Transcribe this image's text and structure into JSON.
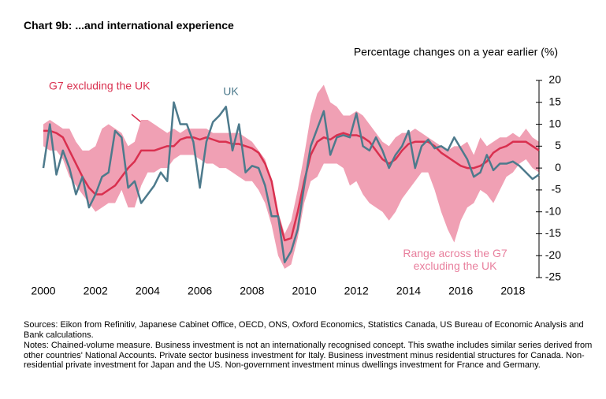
{
  "chart_data": {
    "type": "line",
    "title": "Chart 9b:  ...and international experience",
    "subtitle": "Percentage changes on a year earlier (%)",
    "x": [
      2000,
      2000.25,
      2000.5,
      2000.75,
      2001,
      2001.25,
      2001.5,
      2001.75,
      2002,
      2002.25,
      2002.5,
      2002.75,
      2003,
      2003.25,
      2003.5,
      2003.75,
      2004,
      2004.25,
      2004.5,
      2004.75,
      2005,
      2005.25,
      2005.5,
      2005.75,
      2006,
      2006.25,
      2006.5,
      2006.75,
      2007,
      2007.25,
      2007.5,
      2007.75,
      2008,
      2008.25,
      2008.5,
      2008.75,
      2009,
      2009.25,
      2009.5,
      2009.75,
      2010,
      2010.25,
      2010.5,
      2010.75,
      2011,
      2011.25,
      2011.5,
      2011.75,
      2012,
      2012.25,
      2012.5,
      2012.75,
      2013,
      2013.25,
      2013.5,
      2013.75,
      2014,
      2014.25,
      2014.5,
      2014.75,
      2015,
      2015.25,
      2015.5,
      2015.75,
      2016,
      2016.25,
      2016.5,
      2016.75,
      2017,
      2017.25,
      2017.5,
      2017.75,
      2018,
      2018.25,
      2018.5,
      2018.75,
      2019
    ],
    "series": [
      {
        "name": "G7 excluding the UK",
        "color": "#d9304f",
        "values": [
          8.5,
          8.5,
          8,
          7,
          4,
          1,
          -2,
          -4.5,
          -6,
          -6,
          -5,
          -4,
          -2,
          0,
          1.5,
          4,
          4,
          4,
          4.5,
          5,
          5,
          6.5,
          7,
          7,
          6.5,
          7,
          6.5,
          6,
          6,
          5.5,
          5.5,
          5,
          4.5,
          3.5,
          1,
          -3,
          -11,
          -16.5,
          -16,
          -10,
          -3,
          3,
          6,
          7,
          6.5,
          7.5,
          8,
          7.5,
          7.5,
          7,
          6,
          4,
          2,
          1,
          2,
          4,
          5.5,
          6,
          6,
          6,
          5,
          3.5,
          2.5,
          1.5,
          0.5,
          0,
          0,
          0.5,
          1.5,
          3.5,
          4.5,
          5,
          6,
          6,
          6,
          5,
          4
        ]
      },
      {
        "name": "UK",
        "color": "#4d7a8c",
        "values": [
          0,
          10,
          -1.5,
          4,
          0,
          -6,
          -2,
          -9,
          -6,
          -2,
          -1,
          8.5,
          7,
          -4.5,
          -3,
          -8,
          -6,
          -4,
          -1,
          -3,
          15,
          10,
          10,
          6,
          -4.5,
          6,
          10.5,
          12,
          14,
          4,
          10,
          -1,
          0.5,
          0,
          -4,
          -11,
          -11,
          -21.5,
          -19,
          -14,
          -4,
          5,
          9,
          13,
          3,
          7,
          7.5,
          7,
          12.5,
          5,
          4,
          7,
          4,
          0,
          3,
          5,
          8.5,
          0,
          5,
          6.5,
          4.5,
          5,
          4,
          7,
          4.5,
          2,
          -2,
          -1,
          3,
          -0.5,
          1,
          1,
          1.5,
          0.5,
          -1,
          -2.5,
          -1.5
        ]
      }
    ],
    "band": {
      "name": "Range across the G7 excluding the UK",
      "color": "#f0a0b4",
      "high": [
        10,
        11,
        10,
        9,
        9,
        6,
        4,
        4,
        5,
        9,
        10,
        9,
        8,
        5,
        6,
        11,
        11,
        10,
        9,
        8,
        9,
        8,
        9,
        9,
        9,
        9,
        8,
        8,
        8,
        8,
        8,
        7,
        6,
        4,
        2,
        -3,
        -10,
        -15,
        -12,
        -5,
        3,
        12,
        17,
        19,
        15,
        14,
        12,
        12,
        13,
        12,
        10,
        8,
        6,
        5,
        7,
        8,
        8,
        9,
        8,
        7,
        6,
        5,
        4,
        5,
        5,
        6,
        3,
        7,
        5,
        6,
        7,
        7,
        8,
        7,
        9,
        7,
        6
      ],
      "low": [
        5,
        4,
        4,
        2,
        -2,
        -4,
        -6,
        -8,
        -10,
        -9,
        -8,
        -8,
        -5,
        -9,
        -9,
        -4,
        -1,
        -1,
        0,
        0,
        2,
        3,
        3,
        3,
        2,
        1,
        1,
        0,
        0,
        -1,
        -2,
        -3,
        -3,
        -5,
        -8,
        -13,
        -20,
        -23,
        -22,
        -16,
        -8,
        -3,
        -2,
        1,
        1,
        1,
        0,
        -4,
        -3,
        -6,
        -8,
        -9,
        -10,
        -12,
        -10,
        -7,
        -5,
        -3,
        -1,
        -1,
        -5,
        -10,
        -14,
        -17,
        -12,
        -9,
        -8,
        -5,
        -6,
        -8,
        -5,
        -2,
        -1,
        1,
        2,
        0,
        -1
      ]
    },
    "xlim": [
      2000,
      2019
    ],
    "xticks": [
      2000,
      2002,
      2004,
      2006,
      2008,
      2010,
      2012,
      2014,
      2016,
      2018
    ],
    "ylim": [
      -25,
      20
    ],
    "yticks": [
      -25,
      -20,
      -15,
      -10,
      -5,
      0,
      5,
      10,
      15,
      20
    ],
    "sources": "Sources:  Eikon from Refinitiv, Japanese Cabinet Office, OECD, ONS, Oxford Economics, Statistics Canada, US Bureau of Economic Analysis and Bank calculations.",
    "notes": "Notes:  Chained-volume measure.  Business investment is not an internationally recognised concept.  This swathe includes similar series derived from other countries' National Accounts.  Private sector business investment for Italy.  Business investment minus residential structures for Canada.  Non-residential private investment for Japan and the US.  Non-government investment minus dwellings investment for France and Germany."
  }
}
